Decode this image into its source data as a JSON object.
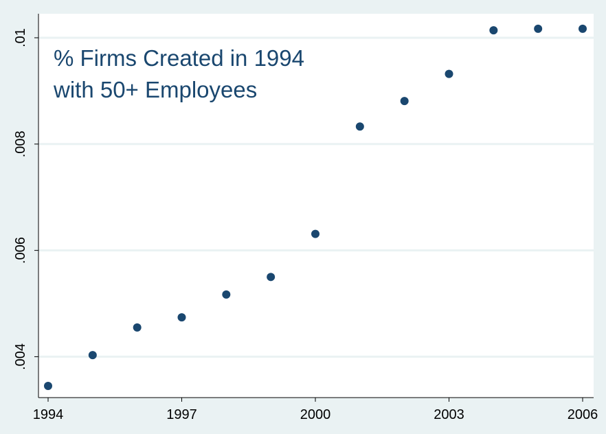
{
  "chart_data": {
    "type": "scatter",
    "title": "",
    "xlabel": "",
    "ylabel": "",
    "annotation": [
      "% Firms Created in 1994",
      "with 50+ Employees"
    ],
    "xlim": [
      1994,
      2006
    ],
    "ylim": [
      0.00345,
      0.0102
    ],
    "x_ticks": [
      1994,
      1997,
      2000,
      2003,
      2006
    ],
    "x_tick_labels": [
      "1994",
      "1997",
      "2000",
      "2003",
      "2006"
    ],
    "y_ticks": [
      0.004,
      0.006,
      0.008,
      0.01
    ],
    "y_tick_labels": [
      ".004",
      ".006",
      ".008",
      ".01"
    ],
    "grid": "horizontal",
    "colors": {
      "background": "#eaf2f3",
      "plot_area": "#ffffff",
      "grid": "#eaf2f3",
      "marker": "#1a476f",
      "annotation": "#1a476f"
    },
    "series": [
      {
        "x": [
          1994,
          1995,
          1996,
          1997,
          1998,
          1999,
          2000,
          2001,
          2002,
          2003,
          2004,
          2005,
          2006
        ],
        "y": [
          0.00345,
          0.00403,
          0.00455,
          0.00474,
          0.00517,
          0.0055,
          0.00631,
          0.00833,
          0.00881,
          0.00932,
          0.01014,
          0.01017,
          0.01017
        ]
      }
    ]
  }
}
